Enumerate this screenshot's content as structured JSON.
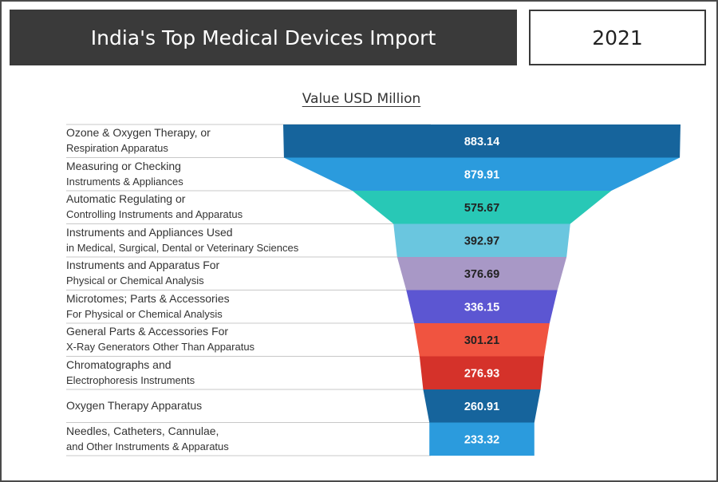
{
  "header": {
    "title": "India's Top Medical Devices Import",
    "year": "2021"
  },
  "colors": {
    "title_bg": "#3a3a3a",
    "bars": [
      "#16649c",
      "#2b9bdd",
      "#28c8b6",
      "#6ac6df",
      "#a898c6",
      "#5c56d2",
      "#f05440",
      "#d5322a",
      "#16649c",
      "#2b9bdd"
    ],
    "label_text": [
      "#ffffff",
      "#ffffff",
      "#222222",
      "#222222",
      "#222222",
      "#ffffff",
      "#222222",
      "#ffffff",
      "#ffffff",
      "#ffffff"
    ]
  },
  "chart_data": {
    "type": "bar",
    "subtitle": "Value USD Million",
    "categories": [
      [
        "Ozone & Oxygen Therapy, or",
        "Respiration Apparatus"
      ],
      [
        "Measuring or Checking",
        "Instruments & Appliances"
      ],
      [
        "Automatic Regulating or",
        "Controlling Instruments and Apparatus"
      ],
      [
        "Instruments and Appliances Used",
        "in Medical, Surgical, Dental or Veterinary Sciences"
      ],
      [
        "Instruments and Apparatus For",
        "Physical or Chemical Analysis"
      ],
      [
        "Microtomes; Parts & Accessories",
        "For Physical or Chemical Analysis"
      ],
      [
        "General Parts & Accessories For",
        "X-Ray Generators Other Than Apparatus"
      ],
      [
        "Chromatographs and",
        "Electrophoresis Instruments"
      ],
      [
        "Oxygen Therapy Apparatus"
      ],
      [
        "Needles, Catheters, Cannulae,",
        "and Other Instruments & Apparatus"
      ]
    ],
    "values": [
      883.14,
      879.91,
      575.67,
      392.97,
      376.69,
      336.15,
      301.21,
      276.93,
      260.91,
      233.32
    ],
    "value_labels": [
      "883.14",
      "879.91",
      "575.67",
      "392.97",
      "376.69",
      "336.15",
      "301.21",
      "276.93",
      "260.91",
      "233.32"
    ]
  }
}
